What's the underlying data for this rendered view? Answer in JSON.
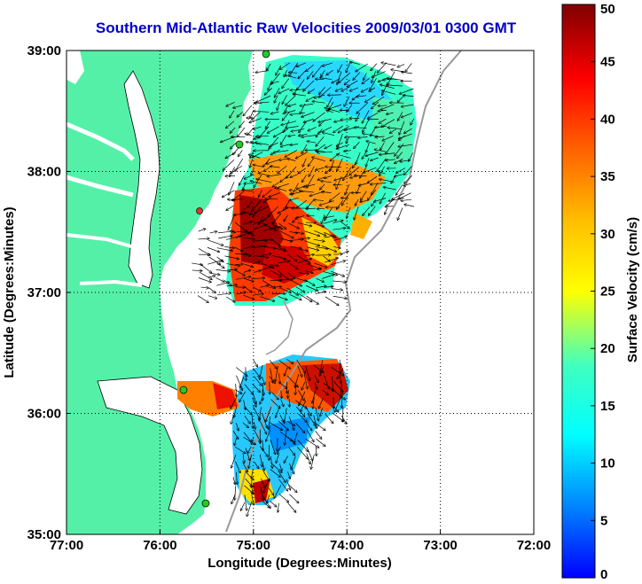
{
  "title": "Southern Mid-Atlantic Raw Velocities 2009/03/01 0300 GMT",
  "chart_data": {
    "type": "map",
    "xlabel": "Longitude (Degrees:Minutes)",
    "ylabel": "Latitude (Degrees:Minutes)",
    "x_ticks": [
      "77:00",
      "76:00",
      "75:00",
      "74:00",
      "73:00",
      "72:00"
    ],
    "y_ticks": [
      "39:00",
      "38:00",
      "37:00",
      "36:00",
      "35:00"
    ],
    "xlim": [
      -77,
      -72
    ],
    "ylim": [
      35,
      39
    ],
    "grid": true,
    "colorbar": {
      "label": "Surface Velocity (cm/s)",
      "range": [
        0,
        50
      ],
      "ticks": [
        "0",
        "5",
        "10",
        "15",
        "20",
        "25",
        "30",
        "35",
        "40",
        "45",
        "50"
      ]
    }
  },
  "colors": {
    "land": "#55f0a8",
    "coast": "#000000",
    "title": "#0000cc",
    "bathymetry": "#999999",
    "station": "#22cc22"
  }
}
